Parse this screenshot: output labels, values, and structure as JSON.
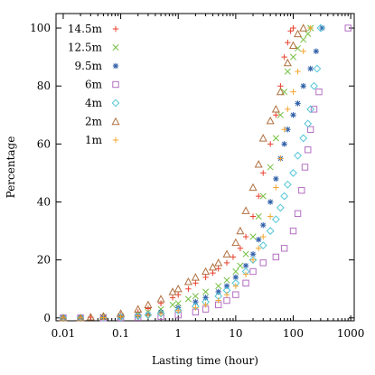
{
  "chart_data": {
    "type": "scatter",
    "title": "",
    "xlabel": "Lasting time (hour)",
    "ylabel": "Percentage",
    "xscale": "log",
    "xlim": [
      0.0075,
      1150
    ],
    "ylim": [
      -1,
      105
    ],
    "x_ticks": [
      0.01,
      0.1,
      1,
      10,
      100,
      1000
    ],
    "x_tick_labels": [
      "0.01",
      "0.1",
      "1",
      "10",
      "100",
      "1000"
    ],
    "y_ticks": [
      0,
      20,
      40,
      60,
      80,
      100
    ],
    "y_tick_labels": [
      "0",
      "20",
      "40",
      "60",
      "80",
      "100"
    ],
    "grid": false,
    "legend_position": "top-left",
    "series": [
      {
        "name": "14.5m",
        "marker": "plus",
        "color": "#e8412f",
        "points": [
          [
            0.01,
            0
          ],
          [
            0.02,
            0
          ],
          [
            0.03,
            0.2
          ],
          [
            0.05,
            0.5
          ],
          [
            0.1,
            1
          ],
          [
            0.2,
            2
          ],
          [
            0.3,
            3.2
          ],
          [
            0.5,
            5
          ],
          [
            0.8,
            7
          ],
          [
            1,
            8
          ],
          [
            1.5,
            10
          ],
          [
            2,
            12
          ],
          [
            3,
            14
          ],
          [
            4,
            15.5
          ],
          [
            5,
            17
          ],
          [
            7,
            19
          ],
          [
            9,
            21
          ],
          [
            12,
            24
          ],
          [
            15,
            28
          ],
          [
            20,
            35
          ],
          [
            25,
            42
          ],
          [
            30,
            50
          ],
          [
            40,
            60
          ],
          [
            50,
            70
          ],
          [
            60,
            80
          ],
          [
            70,
            90
          ],
          [
            80,
            95
          ],
          [
            90,
            99
          ],
          [
            100,
            100
          ]
        ]
      },
      {
        "name": "12.5m",
        "marker": "cross",
        "color": "#76c043",
        "points": [
          [
            0.01,
            0
          ],
          [
            0.02,
            0
          ],
          [
            0.05,
            0.3
          ],
          [
            0.1,
            0.6
          ],
          [
            0.2,
            1.2
          ],
          [
            0.3,
            2
          ],
          [
            0.5,
            3
          ],
          [
            0.8,
            4.5
          ],
          [
            1,
            5
          ],
          [
            1.5,
            6.5
          ],
          [
            2,
            7.5
          ],
          [
            3,
            9
          ],
          [
            5,
            11
          ],
          [
            7,
            13
          ],
          [
            10,
            16
          ],
          [
            12,
            18
          ],
          [
            15,
            22
          ],
          [
            20,
            28
          ],
          [
            25,
            35
          ],
          [
            30,
            42
          ],
          [
            40,
            52
          ],
          [
            50,
            62
          ],
          [
            60,
            70
          ],
          [
            70,
            78
          ],
          [
            80,
            85
          ],
          [
            100,
            90
          ],
          [
            120,
            93
          ],
          [
            150,
            96
          ],
          [
            180,
            98
          ],
          [
            200,
            100
          ]
        ]
      },
      {
        "name": "9.5m",
        "marker": "asterisk",
        "color": "#2f5fa8",
        "points": [
          [
            0.01,
            0
          ],
          [
            0.02,
            0
          ],
          [
            0.05,
            0.1
          ],
          [
            0.1,
            0.3
          ],
          [
            0.2,
            0.8
          ],
          [
            0.3,
            1.2
          ],
          [
            0.5,
            2
          ],
          [
            1,
            3.5
          ],
          [
            2,
            5.5
          ],
          [
            3,
            7
          ],
          [
            5,
            9
          ],
          [
            7,
            11
          ],
          [
            10,
            14
          ],
          [
            15,
            18
          ],
          [
            20,
            22
          ],
          [
            25,
            27
          ],
          [
            30,
            32
          ],
          [
            40,
            40
          ],
          [
            50,
            48
          ],
          [
            60,
            55
          ],
          [
            70,
            60
          ],
          [
            80,
            65
          ],
          [
            100,
            70
          ],
          [
            120,
            74
          ],
          [
            150,
            80
          ],
          [
            200,
            86
          ],
          [
            250,
            92
          ],
          [
            320,
            100
          ]
        ]
      },
      {
        "name": "6m",
        "marker": "square",
        "color": "#b46fc2",
        "points": [
          [
            0.01,
            0
          ],
          [
            0.02,
            0
          ],
          [
            0.05,
            0
          ],
          [
            0.1,
            0.1
          ],
          [
            0.2,
            0.2
          ],
          [
            0.5,
            0.5
          ],
          [
            1,
            1
          ],
          [
            2,
            2
          ],
          [
            3,
            3
          ],
          [
            5,
            4.5
          ],
          [
            7,
            6
          ],
          [
            10,
            8
          ],
          [
            15,
            12
          ],
          [
            20,
            16
          ],
          [
            30,
            19
          ],
          [
            50,
            21
          ],
          [
            70,
            24
          ],
          [
            100,
            30
          ],
          [
            120,
            36
          ],
          [
            140,
            44
          ],
          [
            160,
            52
          ],
          [
            180,
            58
          ],
          [
            200,
            65
          ],
          [
            230,
            72
          ],
          [
            280,
            78
          ],
          [
            900,
            100
          ]
        ]
      },
      {
        "name": "4m",
        "marker": "diamond",
        "color": "#55c6d6",
        "points": [
          [
            0.01,
            0
          ],
          [
            0.02,
            0
          ],
          [
            0.05,
            0.1
          ],
          [
            0.1,
            0.3
          ],
          [
            0.2,
            0.6
          ],
          [
            0.3,
            1
          ],
          [
            0.5,
            1.5
          ],
          [
            1,
            2.5
          ],
          [
            2,
            4
          ],
          [
            3,
            5.5
          ],
          [
            5,
            7.5
          ],
          [
            7,
            9.5
          ],
          [
            10,
            12
          ],
          [
            15,
            16
          ],
          [
            20,
            20
          ],
          [
            30,
            25
          ],
          [
            40,
            30
          ],
          [
            50,
            34
          ],
          [
            60,
            38
          ],
          [
            70,
            42
          ],
          [
            80,
            46
          ],
          [
            100,
            50
          ],
          [
            120,
            56
          ],
          [
            150,
            62
          ],
          [
            180,
            67
          ],
          [
            200,
            72
          ],
          [
            230,
            80
          ],
          [
            260,
            86
          ],
          [
            300,
            100
          ]
        ]
      },
      {
        "name": "2m",
        "marker": "triangle",
        "color": "#b07040",
        "points": [
          [
            0.01,
            0
          ],
          [
            0.02,
            0
          ],
          [
            0.03,
            0.3
          ],
          [
            0.05,
            0.6
          ],
          [
            0.1,
            1.5
          ],
          [
            0.2,
            3
          ],
          [
            0.3,
            4.5
          ],
          [
            0.5,
            6.5
          ],
          [
            0.8,
            9
          ],
          [
            1,
            10
          ],
          [
            1.5,
            12.5
          ],
          [
            2,
            14
          ],
          [
            3,
            16
          ],
          [
            4,
            17.5
          ],
          [
            5,
            19
          ],
          [
            7,
            22
          ],
          [
            10,
            26
          ],
          [
            12,
            30
          ],
          [
            15,
            37
          ],
          [
            20,
            45
          ],
          [
            25,
            53
          ],
          [
            30,
            62
          ],
          [
            40,
            68
          ],
          [
            50,
            72
          ],
          [
            60,
            78
          ],
          [
            80,
            88
          ],
          [
            100,
            94
          ],
          [
            120,
            98
          ],
          [
            150,
            100
          ]
        ]
      },
      {
        "name": "1m",
        "marker": "plus",
        "color": "#f4a734",
        "points": [
          [
            0.01,
            0
          ],
          [
            0.02,
            0
          ],
          [
            0.05,
            0.1
          ],
          [
            0.1,
            0.3
          ],
          [
            0.2,
            0.7
          ],
          [
            0.3,
            1
          ],
          [
            0.5,
            1.5
          ],
          [
            1,
            2.5
          ],
          [
            2,
            3.5
          ],
          [
            3,
            4.5
          ],
          [
            5,
            6
          ],
          [
            7,
            8
          ],
          [
            10,
            11
          ],
          [
            15,
            15
          ],
          [
            20,
            20
          ],
          [
            25,
            24
          ],
          [
            30,
            28
          ],
          [
            40,
            35
          ],
          [
            50,
            45
          ],
          [
            60,
            55
          ],
          [
            70,
            65
          ],
          [
            80,
            72
          ],
          [
            100,
            78
          ],
          [
            120,
            85
          ],
          [
            150,
            92
          ],
          [
            200,
            100
          ]
        ]
      }
    ]
  }
}
